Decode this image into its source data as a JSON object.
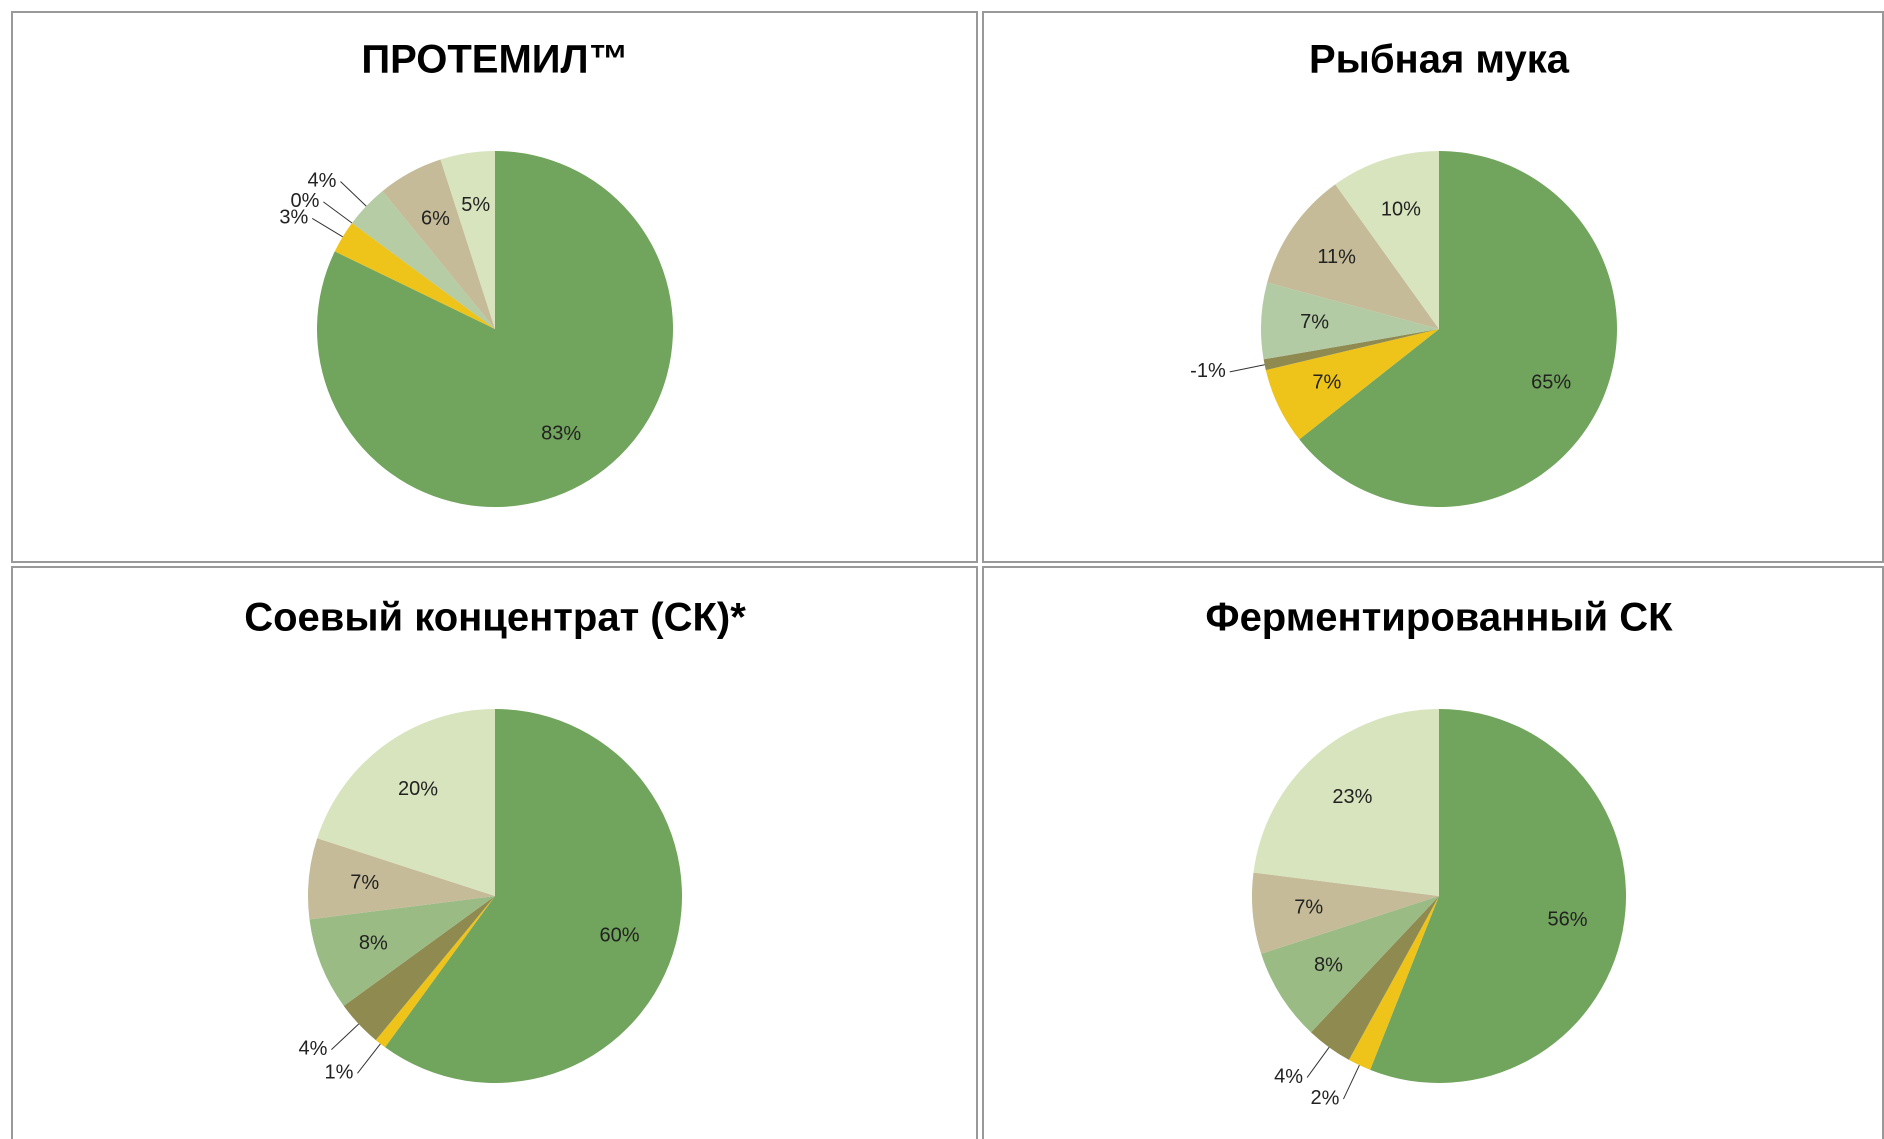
{
  "chart_data": [
    {
      "type": "pie",
      "title": "ПРОТЕМИЛ™",
      "values": [
        83,
        3,
        0,
        4,
        6,
        5
      ],
      "colors": [
        "#71a45c",
        "#eec31a",
        "#8f8a50",
        "#b5cca5",
        "#c5bb98",
        "#d8e4bd"
      ]
    },
    {
      "type": "pie",
      "title": "Рыбная мука",
      "values": [
        65,
        7,
        -1,
        7,
        11,
        10
      ],
      "colors": [
        "#71a45c",
        "#eec31a",
        "#8f8a50",
        "#b3cba4",
        "#c5bb98",
        "#d8e4bd"
      ]
    },
    {
      "type": "pie",
      "title": "Соевый концентрат (СК)*",
      "values": [
        60,
        1,
        4,
        8,
        7,
        20
      ],
      "colors": [
        "#71a45c",
        "#eec31a",
        "#8f8a50",
        "#9bbb85",
        "#c5bb98",
        "#d8e4bd"
      ]
    },
    {
      "type": "pie",
      "title": "Ферментированный СК",
      "values": [
        56,
        2,
        4,
        8,
        7,
        23
      ],
      "colors": [
        "#71a45c",
        "#eec31a",
        "#8f8a50",
        "#9bbb85",
        "#c5bb98",
        "#d8e4bd"
      ]
    }
  ]
}
